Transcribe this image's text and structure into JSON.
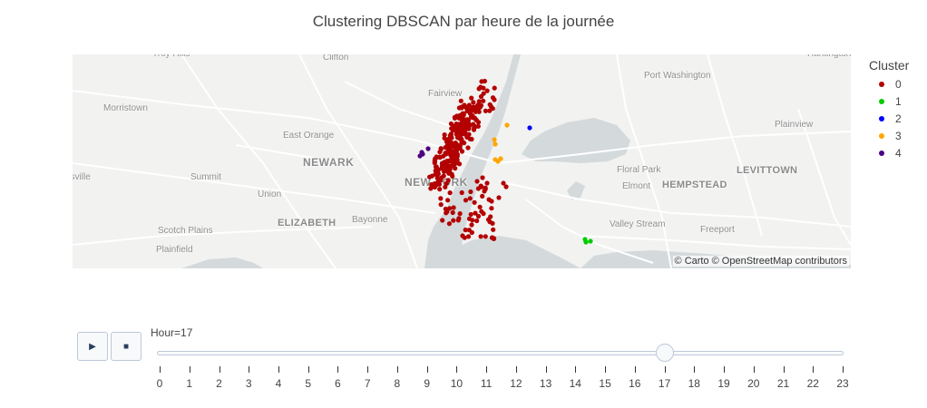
{
  "title": "Clustering DBSCAN par heure de la journée",
  "map": {
    "attribution": "© Carto © OpenStreetMap contributors",
    "places": [
      {
        "name": "Troy Hills",
        "style": "small"
      },
      {
        "name": "Clifton",
        "style": "small"
      },
      {
        "name": "Port Washington",
        "style": "small"
      },
      {
        "name": "Huntington Station",
        "style": "small"
      },
      {
        "name": "Fairview",
        "style": "small"
      },
      {
        "name": "Morristown",
        "style": "small"
      },
      {
        "name": "East Orange",
        "style": "small"
      },
      {
        "name": "NEWARK",
        "style": "big"
      },
      {
        "name": "Plainview",
        "style": "small"
      },
      {
        "name": "Summit",
        "style": "small"
      },
      {
        "name": "Floral Park",
        "style": "small"
      },
      {
        "name": "LEVITTOWN",
        "style": "mid"
      },
      {
        "name": "NEW YORK",
        "style": "big"
      },
      {
        "name": "Elmont",
        "style": "small"
      },
      {
        "name": "HEMPSTEAD",
        "style": "mid"
      },
      {
        "name": "Union",
        "style": "small"
      },
      {
        "name": "ELIZABETH",
        "style": "mid"
      },
      {
        "name": "Bayonne",
        "style": "small"
      },
      {
        "name": "Valley Stream",
        "style": "small"
      },
      {
        "name": "Scotch Plains",
        "style": "small"
      },
      {
        "name": "Freeport",
        "style": "small"
      },
      {
        "name": "Plainfield",
        "style": "small"
      },
      {
        "name": "dsville",
        "style": "small"
      }
    ]
  },
  "legend": {
    "title": "Cluster",
    "items": [
      {
        "label": "0",
        "color": "#b30000"
      },
      {
        "label": "1",
        "color": "#00cc00"
      },
      {
        "label": "2",
        "color": "#0000ff"
      },
      {
        "label": "3",
        "color": "#ffa500"
      },
      {
        "label": "4",
        "color": "#4b0082"
      }
    ]
  },
  "controls": {
    "play_icon": "▶",
    "stop_icon": "■"
  },
  "slider": {
    "prefix": "Hour=",
    "current_value": "17",
    "label": "Hour=17",
    "min": 0,
    "max": 23,
    "ticks": [
      "0",
      "1",
      "2",
      "3",
      "4",
      "5",
      "6",
      "7",
      "8",
      "9",
      "10",
      "11",
      "12",
      "13",
      "14",
      "15",
      "16",
      "17",
      "18",
      "19",
      "20",
      "21",
      "22",
      "23"
    ]
  }
}
